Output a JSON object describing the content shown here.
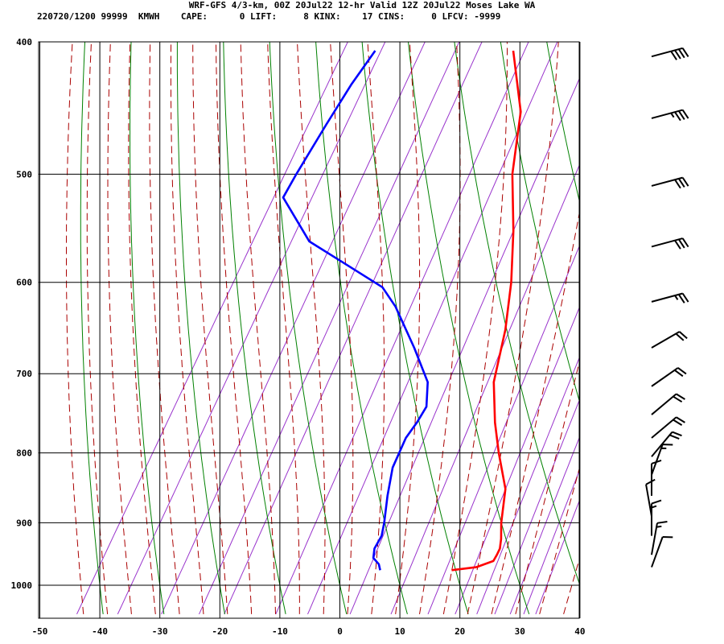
{
  "header": {
    "title": "WRF-GFS 4/3-km, 00Z 20Jul22 12-hr Valid 12Z 20Jul22 Moses Lake WA",
    "info": {
      "station": "220720/1200 99999  KMWH",
      "cape_label": "CAPE:",
      "cape_value": "0",
      "lift_label": "LIFT:",
      "lift_value": "8",
      "kinx_label": "KINX:",
      "kinx_value": "17",
      "cins_label": "CINS:",
      "cins_value": "0",
      "lfcv_label": "LFCV:",
      "lfcv_value": "-9999"
    }
  },
  "chart_data": {
    "type": "skew-t",
    "title": "",
    "xlabel": "",
    "ylabel": "",
    "x_axis": {
      "unit": "temperature (C)",
      "range": [
        -50,
        40
      ],
      "ticks": [
        -50,
        -40,
        -30,
        -20,
        -10,
        0,
        10,
        20,
        30,
        40
      ],
      "tick_labels": [
        "-50",
        "-40",
        "-30",
        "-20",
        "-10",
        "0",
        "10",
        "20",
        "30",
        "40"
      ]
    },
    "y_axis": {
      "unit": "pressure (hPa)",
      "scale": "log",
      "range": [
        1040,
        400
      ],
      "ticks": [
        400,
        500,
        600,
        700,
        800,
        900,
        1000
      ],
      "tick_labels": [
        "400",
        "500",
        "600",
        "700",
        "800",
        "900",
        "1000"
      ]
    },
    "grid": true,
    "background_lines": {
      "dry_adiabats": "green",
      "moist_adiabats": "dark red dashed",
      "mixing_ratio": "purple"
    },
    "colors": {
      "temperature": "#ff0000",
      "dewpoint": "#0000ff",
      "dry_adiabat": "#008000",
      "moist_adiabat": "#aa0000",
      "mixing_ratio": "#9933cc",
      "grid": "#000000"
    },
    "series": [
      {
        "key": "temperature",
        "points": [
          {
            "p": 975,
            "t": 17.2
          },
          {
            "p": 970,
            "t": 21.0
          },
          {
            "p": 960,
            "t": 23.3
          },
          {
            "p": 950,
            "t": 23.3
          },
          {
            "p": 940,
            "t": 23.2
          },
          {
            "p": 925,
            "t": 22.5
          },
          {
            "p": 900,
            "t": 21.0
          },
          {
            "p": 850,
            "t": 18.5
          },
          {
            "p": 800,
            "t": 14.0
          },
          {
            "p": 760,
            "t": 10.5
          },
          {
            "p": 710,
            "t": 6.5
          },
          {
            "p": 650,
            "t": 3.5
          },
          {
            "p": 600,
            "t": 0.0
          },
          {
            "p": 550,
            "t": -4.5
          },
          {
            "p": 500,
            "t": -10.0
          },
          {
            "p": 450,
            "t": -14.5
          },
          {
            "p": 406,
            "t": -21.5
          }
        ]
      },
      {
        "key": "dewpoint",
        "points": [
          {
            "p": 975,
            "t": 5.3
          },
          {
            "p": 965,
            "t": 4.5
          },
          {
            "p": 955,
            "t": 3.0
          },
          {
            "p": 940,
            "t": 2.3
          },
          {
            "p": 920,
            "t": 2.3
          },
          {
            "p": 900,
            "t": 1.5
          },
          {
            "p": 860,
            "t": -0.5
          },
          {
            "p": 820,
            "t": -2.3
          },
          {
            "p": 780,
            "t": -2.9
          },
          {
            "p": 760,
            "t": -2.5
          },
          {
            "p": 740,
            "t": -2.4
          },
          {
            "p": 710,
            "t": -4.5
          },
          {
            "p": 670,
            "t": -10.0
          },
          {
            "p": 625,
            "t": -17.0
          },
          {
            "p": 605,
            "t": -21.0
          },
          {
            "p": 580,
            "t": -30.0
          },
          {
            "p": 560,
            "t": -37.5
          },
          {
            "p": 520,
            "t": -46.0
          },
          {
            "p": 500,
            "t": -46.0
          },
          {
            "p": 460,
            "t": -45.7
          },
          {
            "p": 430,
            "t": -45.3
          },
          {
            "p": 406,
            "t": -44.5
          }
        ]
      }
    ],
    "wind_barbs": [
      {
        "p": 410,
        "dir": 255,
        "speed": 40
      },
      {
        "p": 455,
        "dir": 255,
        "speed": 35
      },
      {
        "p": 510,
        "dir": 255,
        "speed": 30
      },
      {
        "p": 565,
        "dir": 255,
        "speed": 30
      },
      {
        "p": 620,
        "dir": 255,
        "speed": 25
      },
      {
        "p": 670,
        "dir": 240,
        "speed": 20
      },
      {
        "p": 715,
        "dir": 235,
        "speed": 20
      },
      {
        "p": 750,
        "dir": 230,
        "speed": 20
      },
      {
        "p": 780,
        "dir": 230,
        "speed": 20
      },
      {
        "p": 805,
        "dir": 220,
        "speed": 20
      },
      {
        "p": 830,
        "dir": 200,
        "speed": 15
      },
      {
        "p": 860,
        "dir": 180,
        "speed": 10
      },
      {
        "p": 890,
        "dir": 170,
        "speed": 10
      },
      {
        "p": 920,
        "dir": 180,
        "speed": 15
      },
      {
        "p": 950,
        "dir": 190,
        "speed": 15
      },
      {
        "p": 970,
        "dir": 200,
        "speed": 10
      }
    ]
  }
}
